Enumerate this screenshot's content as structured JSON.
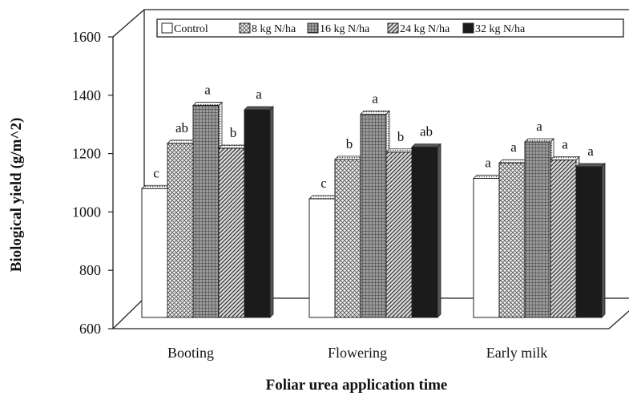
{
  "chart_data": {
    "type": "bar",
    "title": "",
    "xlabel": "Foliar urea application time",
    "ylabel": "Biological yield (g/m^2)",
    "ylim": [
      600,
      1600
    ],
    "yticks": [
      600,
      800,
      1000,
      1200,
      1400,
      1600
    ],
    "categories": [
      "Booting",
      "Flowering",
      "Early milk"
    ],
    "legend_position": "top",
    "grid": false,
    "series": [
      {
        "name": "Control",
        "pattern": "white",
        "values": [
          1080,
          1045,
          1115
        ],
        "letters": [
          "c",
          "c",
          "a"
        ]
      },
      {
        "name": "8 kg N/ha",
        "pattern": "crosshatch",
        "values": [
          1235,
          1180,
          1168
        ],
        "letters": [
          "ab",
          "b",
          "a"
        ]
      },
      {
        "name": "16 kg N/ha",
        "pattern": "grid",
        "values": [
          1365,
          1335,
          1240
        ],
        "letters": [
          "a",
          "a",
          "a"
        ]
      },
      {
        "name": "24 kg N/ha",
        "pattern": "diagonal",
        "values": [
          1218,
          1205,
          1178
        ],
        "letters": [
          "b",
          "b",
          "a"
        ]
      },
      {
        "name": "32 kg N/ha",
        "pattern": "dark",
        "values": [
          1350,
          1222,
          1155
        ],
        "letters": [
          "a",
          "ab",
          "a"
        ]
      }
    ]
  }
}
